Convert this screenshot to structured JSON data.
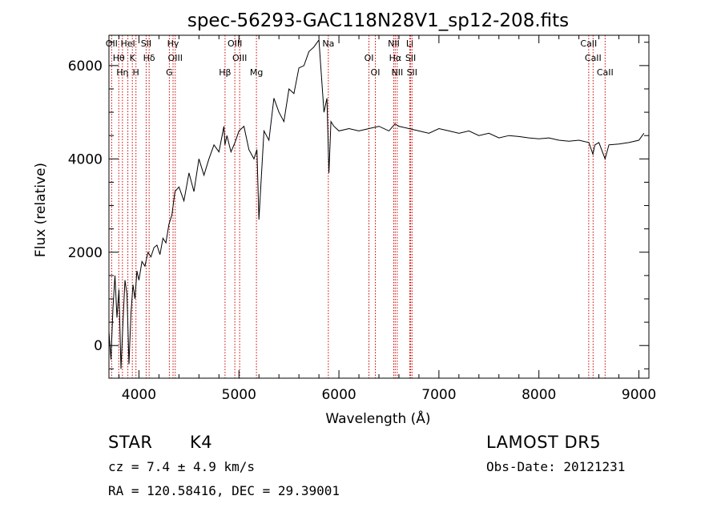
{
  "chart_data": {
    "type": "line",
    "title": "spec-56293-GAC118N28V1_sp12-208.fits",
    "xlabel": "Wavelength (Å)",
    "ylabel": "Flux (relative)",
    "xlim": [
      3700,
      9100
    ],
    "ylim": [
      -700,
      6650
    ],
    "xticks": [
      4000,
      5000,
      6000,
      7000,
      8000,
      9000
    ],
    "yticks": [
      0,
      2000,
      4000,
      6000
    ],
    "grid": false,
    "series": [
      {
        "x": [
          3700,
          3720,
          3740,
          3760,
          3780,
          3800,
          3820,
          3840,
          3860,
          3880,
          3900,
          3920,
          3940,
          3960,
          3980,
          4000,
          4030,
          4060,
          4090,
          4120,
          4150,
          4180,
          4210,
          4240,
          4270,
          4300,
          4330,
          4360,
          4400,
          4450,
          4500,
          4550,
          4600,
          4650,
          4700,
          4750,
          4800,
          4850,
          4860,
          4880,
          4920,
          4960,
          5000,
          5050,
          5100,
          5150,
          5180,
          5200,
          5250,
          5300,
          5350,
          5400,
          5450,
          5500,
          5550,
          5600,
          5650,
          5700,
          5750,
          5800,
          5850,
          5880,
          5900,
          5920,
          5950,
          6000,
          6100,
          6200,
          6300,
          6400,
          6500,
          6560,
          6600,
          6700,
          6800,
          6900,
          7000,
          7100,
          7200,
          7300,
          7400,
          7500,
          7600,
          7700,
          7800,
          7900,
          8000,
          8100,
          8200,
          8300,
          8400,
          8500,
          8540,
          8560,
          8600,
          8662,
          8700,
          8800,
          8900,
          9000,
          9050
        ],
        "values": [
          300,
          -300,
          800,
          1500,
          600,
          1200,
          -500,
          500,
          1400,
          1100,
          -400,
          700,
          1300,
          1000,
          1600,
          1400,
          1800,
          1700,
          2000,
          1900,
          2100,
          2150,
          1950,
          2300,
          2200,
          2600,
          2800,
          3300,
          3400,
          3100,
          3700,
          3300,
          4000,
          3650,
          4000,
          4300,
          4150,
          4700,
          4300,
          4500,
          4150,
          4350,
          4600,
          4700,
          4200,
          4000,
          4200,
          2700,
          4600,
          4400,
          5300,
          5000,
          4800,
          5500,
          5400,
          5950,
          6000,
          6300,
          6400,
          6550,
          5000,
          5300,
          3700,
          4800,
          4700,
          4600,
          4650,
          4600,
          4650,
          4700,
          4600,
          4750,
          4700,
          4650,
          4600,
          4550,
          4650,
          4600,
          4550,
          4600,
          4500,
          4550,
          4450,
          4500,
          4480,
          4450,
          4430,
          4450,
          4400,
          4380,
          4400,
          4350,
          4100,
          4300,
          4350,
          4000,
          4300,
          4320,
          4350,
          4400,
          4550
        ]
      }
    ],
    "lines": [
      {
        "x": 3727,
        "labels": [
          "OII"
        ]
      },
      {
        "x": 3798,
        "labels": [
          "Hθ"
        ]
      },
      {
        "x": 3835,
        "labels": [
          "Hη"
        ]
      },
      {
        "x": 3889,
        "labels": [
          "HeI"
        ]
      },
      {
        "x": 3934,
        "labels": [
          "K"
        ]
      },
      {
        "x": 3970,
        "labels": [
          "H"
        ]
      },
      {
        "x": 4072,
        "labels": [
          "SII"
        ]
      },
      {
        "x": 4102,
        "labels": [
          "Hδ"
        ]
      },
      {
        "x": 4304,
        "labels": [
          "G"
        ]
      },
      {
        "x": 4341,
        "labels": [
          "Hγ"
        ]
      },
      {
        "x": 4363,
        "labels": [
          "OIII"
        ]
      },
      {
        "x": 4861,
        "labels": [
          "Hβ"
        ]
      },
      {
        "x": 4959,
        "labels": [
          "OIII"
        ]
      },
      {
        "x": 5007,
        "labels": [
          "OIII"
        ]
      },
      {
        "x": 5175,
        "labels": [
          "Mg"
        ]
      },
      {
        "x": 5894,
        "labels": [
          "Na"
        ]
      },
      {
        "x": 6300,
        "labels": [
          "OI"
        ]
      },
      {
        "x": 6364,
        "labels": [
          "OI"
        ]
      },
      {
        "x": 6548,
        "labels": [
          "NII"
        ]
      },
      {
        "x": 6563,
        "labels": [
          "Hα"
        ]
      },
      {
        "x": 6583,
        "labels": [
          "NII"
        ]
      },
      {
        "x": 6708,
        "labels": [
          "Li"
        ]
      },
      {
        "x": 6717,
        "labels": [
          "SII"
        ]
      },
      {
        "x": 6731,
        "labels": [
          "SII"
        ]
      },
      {
        "x": 8498,
        "labels": [
          "CaII"
        ]
      },
      {
        "x": 8542,
        "labels": [
          "CaII"
        ]
      },
      {
        "x": 8662,
        "labels": [
          "CaII"
        ]
      }
    ]
  },
  "info": {
    "class_text": "STAR",
    "subclass_text": "K4",
    "cz_text": "cz = 7.4 ± 4.9 km/s",
    "radec_text": "RA = 120.58416, DEC =  29.39001",
    "survey_text": "LAMOST DR5",
    "obsdate_text": "Obs-Date: 20121231"
  },
  "colors": {
    "spectrum": "#000000",
    "line_markers": "#cc0000",
    "axes": "#000000"
  }
}
